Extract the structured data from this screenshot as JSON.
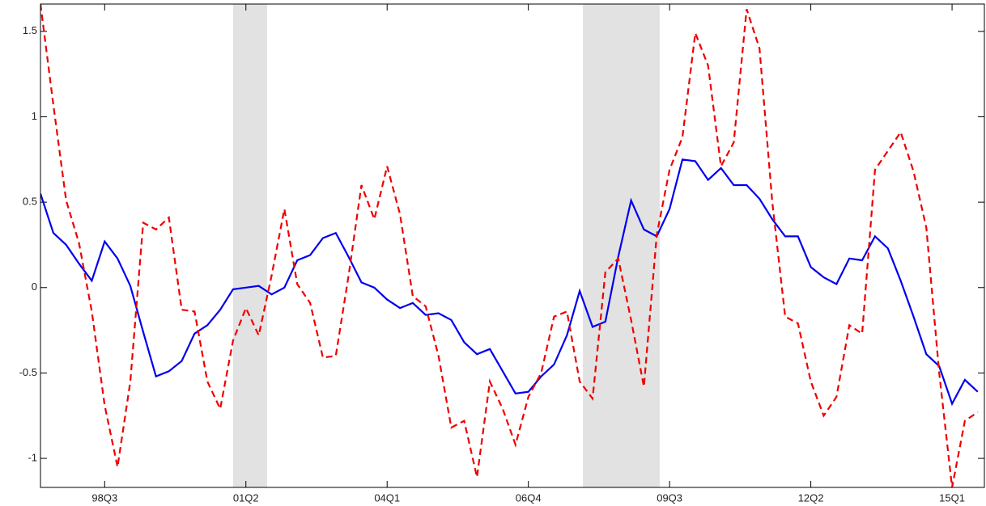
{
  "chart_data": {
    "type": "line",
    "categories": [
      null,
      null,
      null,
      null,
      null,
      "98Q3",
      null,
      null,
      null,
      null,
      null,
      null,
      null,
      null,
      null,
      null,
      "01Q2",
      null,
      null,
      null,
      null,
      null,
      null,
      null,
      null,
      null,
      null,
      "04Q1",
      null,
      null,
      null,
      null,
      null,
      null,
      null,
      null,
      null,
      null,
      "06Q4",
      null,
      null,
      null,
      null,
      null,
      null,
      null,
      null,
      null,
      null,
      "09Q3",
      null,
      null,
      null,
      null,
      null,
      null,
      null,
      null,
      null,
      null,
      "12Q2",
      null,
      null,
      null,
      null,
      null,
      null,
      null,
      null,
      null,
      null,
      "15Q1",
      null,
      null
    ],
    "series": [
      {
        "color": "#0000ee",
        "dashed": false,
        "values": [
          0.55,
          0.32,
          0.25,
          0.14,
          0.04,
          0.27,
          0.17,
          0.01,
          -0.26,
          -0.52,
          -0.49,
          -0.43,
          -0.27,
          -0.22,
          -0.13,
          -0.01,
          0.0,
          0.01,
          -0.04,
          0.0,
          0.16,
          0.19,
          0.29,
          0.32,
          0.18,
          0.03,
          0.0,
          -0.07,
          -0.12,
          -0.09,
          -0.16,
          -0.15,
          -0.19,
          -0.32,
          -0.39,
          -0.36,
          -0.49,
          -0.62,
          -0.61,
          -0.52,
          -0.45,
          -0.28,
          -0.02,
          -0.23,
          -0.2,
          0.18,
          0.51,
          0.34,
          0.3,
          0.46,
          0.75,
          0.74,
          0.63,
          0.7,
          0.6,
          0.6,
          0.52,
          0.4,
          0.3,
          0.3,
          0.12,
          0.06,
          0.02,
          0.17,
          0.16,
          0.3,
          0.23,
          0.04,
          -0.17,
          -0.39,
          -0.46,
          -0.68,
          -0.54,
          -0.61
        ]
      },
      {
        "color": "#ee0000",
        "dashed": true,
        "values": [
          1.66,
          1.07,
          0.51,
          0.26,
          -0.14,
          -0.69,
          -1.05,
          -0.55,
          0.38,
          0.34,
          0.41,
          -0.13,
          -0.14,
          -0.55,
          -0.71,
          -0.31,
          -0.12,
          -0.28,
          0.07,
          0.46,
          0.02,
          -0.09,
          -0.41,
          -0.4,
          0.07,
          0.6,
          0.4,
          0.71,
          0.43,
          -0.05,
          -0.11,
          -0.4,
          -0.82,
          -0.78,
          -1.11,
          -0.55,
          -0.71,
          -0.92,
          -0.64,
          -0.5,
          -0.17,
          -0.14,
          -0.55,
          -0.65,
          0.09,
          0.17,
          -0.19,
          -0.58,
          0.31,
          0.69,
          0.88,
          1.49,
          1.3,
          0.71,
          0.85,
          1.63,
          1.4,
          0.5,
          -0.17,
          -0.21,
          -0.55,
          -0.75,
          -0.64,
          -0.22,
          -0.27,
          0.69,
          0.8,
          0.91,
          0.68,
          0.35,
          -0.5,
          -1.17,
          -0.78,
          -0.73
        ]
      }
    ],
    "shaded_regions": [
      [
        15.0,
        17.65
      ],
      [
        42.25,
        48.23
      ]
    ],
    "shade_color": "#e2e2e2",
    "ylim": [
      -1.17,
      1.66
    ],
    "yticks": [
      -1,
      -0.5,
      0,
      0.5,
      1,
      1.5
    ]
  }
}
